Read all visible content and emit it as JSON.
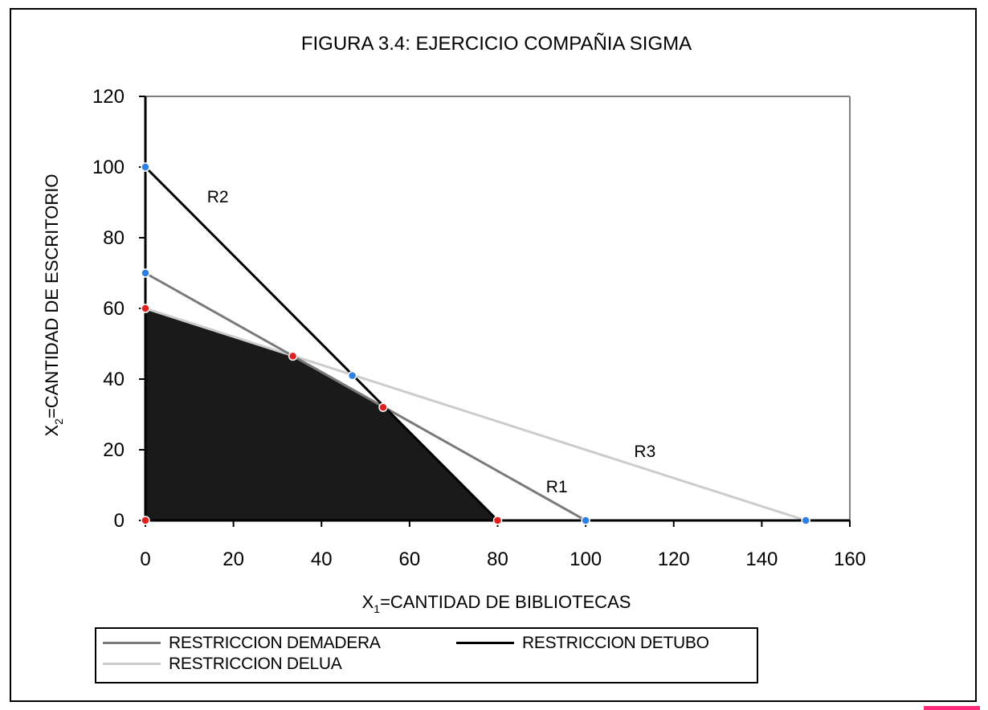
{
  "chart_data": {
    "type": "line",
    "title": "FIGURA 3.4:  EJERCICIO COMPAÑIA SIGMA",
    "xlabel": {
      "main": "X",
      "sub": "1",
      "rest": "=CANTIDAD DE BIBLIOTECAS"
    },
    "ylabel": {
      "main": "X",
      "sub": "2",
      "rest": "=CANTIDAD DE ESCRITORIO"
    },
    "xlim": [
      0,
      160
    ],
    "ylim": [
      0,
      120
    ],
    "xticks": [
      0,
      20,
      40,
      60,
      80,
      100,
      120,
      140,
      160
    ],
    "yticks": [
      0,
      20,
      40,
      60,
      80,
      100,
      120
    ],
    "grid": false,
    "legend_position": "bottom",
    "series": [
      {
        "name": "RESTRICCION DE MADERA",
        "label": "R1",
        "color": "#7a7a7a",
        "points": [
          [
            0,
            70
          ],
          [
            100,
            0
          ]
        ],
        "label_at": [
          91,
          8
        ]
      },
      {
        "name": "RESTRICCION DE TUBO",
        "label": "R2",
        "color": "#000000",
        "points": [
          [
            0,
            100
          ],
          [
            80,
            0
          ]
        ],
        "label_at": [
          14,
          90
        ]
      },
      {
        "name": "RESTRICCION DE LUA",
        "label": "R3",
        "color": "#cccccc",
        "points": [
          [
            0,
            60
          ],
          [
            150,
            0
          ]
        ],
        "label_at": [
          111,
          18
        ]
      }
    ],
    "feasible_region": {
      "color": "#1a1a1a",
      "vertices": [
        [
          0,
          0
        ],
        [
          0,
          60
        ],
        [
          33.3,
          46.7
        ],
        [
          54.5,
          31.8
        ],
        [
          80,
          0
        ]
      ]
    },
    "marked_points": [
      {
        "x": 0,
        "y": 100,
        "color": "#2f7fe0"
      },
      {
        "x": 0,
        "y": 70,
        "color": "#2f7fe0"
      },
      {
        "x": 0,
        "y": 60,
        "color": "#e02020"
      },
      {
        "x": 0,
        "y": 0,
        "color": "#e02020"
      },
      {
        "x": 33.5,
        "y": 46.5,
        "color": "#e02020"
      },
      {
        "x": 47,
        "y": 41,
        "color": "#2f7fe0"
      },
      {
        "x": 54,
        "y": 32,
        "color": "#e02020"
      },
      {
        "x": 80,
        "y": 0,
        "color": "#e02020"
      },
      {
        "x": 100,
        "y": 0,
        "color": "#2f7fe0"
      },
      {
        "x": 150,
        "y": 0,
        "color": "#2f7fe0"
      }
    ],
    "legend": [
      {
        "label": "RESTRICCION DEMADERA",
        "color": "#7a7a7a"
      },
      {
        "label": "RESTRICCION DETUBO",
        "color": "#000000"
      },
      {
        "label": "RESTRICCION DELUA",
        "color": "#cccccc"
      }
    ]
  }
}
